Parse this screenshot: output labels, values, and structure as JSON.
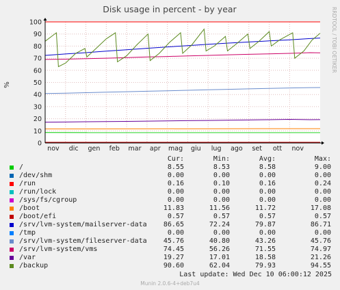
{
  "chart_data": {
    "type": "line",
    "title": "Disk usage in percent - by year",
    "ylabel": "%",
    "watermark": "RRDTOOL / TOBI OETIKER",
    "ylim": [
      0,
      100
    ],
    "yticks": [
      0,
      10,
      20,
      30,
      40,
      50,
      60,
      70,
      80,
      90,
      100
    ],
    "x_range_months": [
      0,
      13.5
    ],
    "month_ticks": [
      {
        "label": "nov",
        "m": 0.4
      },
      {
        "label": "dic",
        "m": 1.4
      },
      {
        "label": "gen",
        "m": 2.4
      },
      {
        "label": "feb",
        "m": 3.4
      },
      {
        "label": "mar",
        "m": 4.4
      },
      {
        "label": "apr",
        "m": 5.4
      },
      {
        "label": "mag",
        "m": 6.4
      },
      {
        "label": "giu",
        "m": 7.4
      },
      {
        "label": "lug",
        "m": 8.4
      },
      {
        "label": "ago",
        "m": 9.4
      },
      {
        "label": "set",
        "m": 10.4
      },
      {
        "label": "ott",
        "m": 11.4
      },
      {
        "label": "nov",
        "m": 12.4
      }
    ],
    "max_line": {
      "value": 100,
      "color": "#ff0000"
    },
    "series": [
      {
        "name": "/",
        "color": "#00cc00",
        "cur": "8.55",
        "min": "8.53",
        "avg": "8.58",
        "max": "9.00",
        "x": [
          0,
          13.5
        ],
        "y": [
          8.58,
          8.55
        ]
      },
      {
        "name": "/dev/shm",
        "color": "#0066b3",
        "cur": "0.00",
        "min": "0.00",
        "avg": "0.00",
        "max": "0.00",
        "x": [
          0,
          13.5
        ],
        "y": [
          0,
          0
        ]
      },
      {
        "name": "/run",
        "color": "#ff0000",
        "cur": "0.16",
        "min": "0.10",
        "avg": "0.16",
        "max": "0.24",
        "x": [
          0,
          13.5
        ],
        "y": [
          0.16,
          0.16
        ]
      },
      {
        "name": "/run/lock",
        "color": "#00bfbf",
        "cur": "0.00",
        "min": "0.00",
        "avg": "0.00",
        "max": "0.00",
        "x": [
          0,
          13.5
        ],
        "y": [
          0,
          0
        ]
      },
      {
        "name": "/sys/fs/cgroup",
        "color": "#cc00cc",
        "cur": "0.00",
        "min": "0.00",
        "avg": "0.00",
        "max": "0.00",
        "x": [
          0,
          13.5
        ],
        "y": [
          0,
          0
        ]
      },
      {
        "name": "/boot",
        "color": "#ff8000",
        "cur": "11.83",
        "min": "11.56",
        "avg": "11.72",
        "max": "17.08",
        "x": [
          0,
          13.5
        ],
        "y": [
          11.6,
          11.83
        ]
      },
      {
        "name": "/boot/efi",
        "color": "#c00000",
        "cur": "0.57",
        "min": "0.57",
        "avg": "0.57",
        "max": "0.57",
        "x": [
          0,
          13.5
        ],
        "y": [
          0.57,
          0.57
        ]
      },
      {
        "name": "/srv/lvm-system/mailserver-data",
        "color": "#0000cc",
        "cur": "86.65",
        "min": "72.24",
        "avg": "79.87",
        "max": "86.71",
        "x": [
          0,
          1,
          2,
          3,
          4,
          5,
          6,
          7,
          8,
          9,
          10,
          11,
          12,
          13,
          13.5
        ],
        "y": [
          72.3,
          73.5,
          74.6,
          75.8,
          77,
          78.2,
          79.3,
          80.4,
          81.5,
          82.5,
          83.4,
          84.3,
          85.2,
          86.2,
          86.65
        ]
      },
      {
        "name": "/tmp",
        "color": "#0080ff",
        "cur": "0.00",
        "min": "0.00",
        "avg": "0.00",
        "max": "0.00",
        "x": [
          0,
          13.5
        ],
        "y": [
          0,
          0
        ]
      },
      {
        "name": "/srv/lvm-system/fileserver-data",
        "color": "#6a8ccc",
        "cur": "45.76",
        "min": "40.80",
        "avg": "43.26",
        "max": "45.76",
        "x": [
          0,
          1,
          2,
          3,
          4,
          5,
          6,
          7,
          8,
          9,
          10,
          11,
          12,
          13,
          13.5
        ],
        "y": [
          40.8,
          41.1,
          41.5,
          41.9,
          42.3,
          42.7,
          43.1,
          43.5,
          43.9,
          44.3,
          44.7,
          45.1,
          45.4,
          45.7,
          45.76
        ]
      },
      {
        "name": "/srv/lvm-system/vms",
        "color": "#cc0066",
        "cur": "74.45",
        "min": "56.26",
        "avg": "71.55",
        "max": "74.97",
        "x": [
          0,
          1,
          2,
          3,
          4,
          5,
          6,
          7,
          8,
          9,
          10,
          11,
          12,
          13,
          13.5
        ],
        "y": [
          69,
          69.2,
          69.6,
          70,
          70.5,
          71,
          71.4,
          71.9,
          72.3,
          72.8,
          73.2,
          73.6,
          74,
          74.6,
          74.45
        ]
      },
      {
        "name": "/var",
        "color": "#660099",
        "cur": "19.27",
        "min": "17.01",
        "avg": "18.58",
        "max": "21.26",
        "x": [
          0,
          1,
          2,
          3,
          4,
          5,
          6,
          7,
          8,
          9,
          10,
          11,
          12,
          13,
          13.5
        ],
        "y": [
          17.2,
          17.3,
          17.5,
          17.6,
          17.8,
          18,
          18.2,
          18.4,
          18.6,
          18.8,
          19,
          19.2,
          19.5,
          19.2,
          19.27
        ]
      },
      {
        "name": "/backup",
        "color": "#5c8a1f",
        "cur": "90.60",
        "min": "62.04",
        "avg": "79.93",
        "max": "94.55",
        "x": [
          0.0,
          0.55,
          0.65,
          1.0,
          1.5,
          1.95,
          2.05,
          2.5,
          3.0,
          3.45,
          3.55,
          4.0,
          4.5,
          5.05,
          5.15,
          5.6,
          6.1,
          6.65,
          6.75,
          7.2,
          7.8,
          7.9,
          8.3,
          8.85,
          8.95,
          9.4,
          9.95,
          10.05,
          10.5,
          11.0,
          11.1,
          11.5,
          12.15,
          12.25,
          12.7,
          13.1,
          13.5
        ],
        "y": [
          84,
          91,
          63,
          66,
          74,
          78,
          71,
          78,
          86,
          91,
          67,
          72,
          81,
          90,
          68,
          74,
          83,
          91,
          74,
          81,
          94,
          76,
          80,
          88,
          76,
          82,
          90,
          78,
          84,
          92,
          80,
          85,
          91,
          70,
          76,
          85,
          90.6
        ]
      }
    ],
    "legend_headers": {
      "cur": "Cur:",
      "min": "Min:",
      "avg": "Avg:",
      "max": "Max:"
    }
  },
  "last_update": "Last update: Wed Dec 10 06:00:12 2025",
  "version": "Munin 2.0.6-4+deb7u4"
}
